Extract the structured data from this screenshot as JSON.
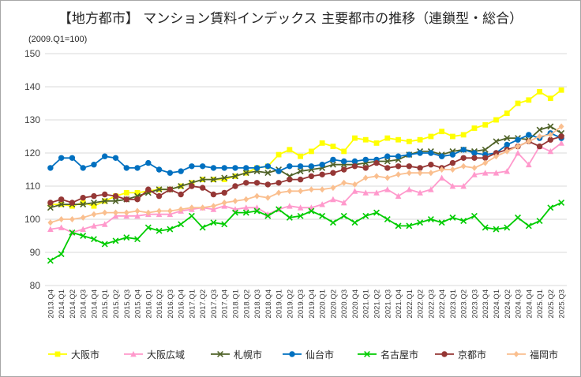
{
  "chart_data": {
    "type": "line",
    "title": "【地方都市】 マンション賃料インデックス  主要都市の推移（連鎖型・総合）",
    "unit_note": "(2009.Q1=100)",
    "ylim": [
      80,
      150
    ],
    "yticks": [
      80,
      90,
      100,
      110,
      120,
      130,
      140,
      150
    ],
    "grid": true,
    "legend_position": "bottom",
    "categories": [
      "2013.Q4",
      "2014.Q1",
      "2014.Q2",
      "2014.Q3",
      "2014.Q4",
      "2015.Q1",
      "2015.Q2",
      "2015.Q3",
      "2015.Q4",
      "2016.Q1",
      "2016.Q2",
      "2016.Q3",
      "2016.Q4",
      "2017.Q1",
      "2017.Q2",
      "2017.Q3",
      "2017.Q4",
      "2018.Q1",
      "2018.Q2",
      "2018.Q3",
      "2018.Q4",
      "2019.Q1",
      "2019.Q2",
      "2019.Q3",
      "2019.Q4",
      "2020.Q1",
      "2020.Q2",
      "2020.Q3",
      "2020.Q4",
      "2021.Q1",
      "2021.Q2",
      "2021.Q3",
      "2021.Q4",
      "2022.Q1",
      "2022.Q2",
      "2022.Q3",
      "2022.Q4",
      "2023.Q1",
      "2023.Q2",
      "2023.Q3",
      "2023.Q4",
      "2024.Q1",
      "2024.Q2",
      "2024.Q3",
      "2024.Q4",
      "2025.Q1",
      "2025.Q2",
      "2025.Q3"
    ],
    "series": [
      {
        "name": "大阪市",
        "color": "#ffff00",
        "marker": "square",
        "values": [
          104.5,
          104.5,
          104,
          105,
          104,
          105.5,
          107,
          108,
          108,
          108.5,
          109,
          109,
          110,
          111,
          112,
          112,
          112,
          113,
          114,
          115.5,
          116,
          119.5,
          121,
          119,
          120.5,
          123,
          122,
          120.5,
          124.5,
          124,
          123,
          124.5,
          124,
          123.5,
          124,
          125,
          126.5,
          125,
          125.5,
          127.5,
          128.5,
          130,
          132,
          135,
          136,
          138.5,
          136.5,
          139
        ]
      },
      {
        "name": "大阪広域",
        "color": "#ff99cc",
        "marker": "triangle",
        "values": [
          97,
          97.5,
          96,
          97,
          98,
          98.5,
          101,
          101,
          101,
          101.5,
          101.5,
          101.5,
          102.5,
          103,
          103.5,
          103,
          104,
          103,
          103.5,
          103.5,
          101.5,
          103,
          104,
          103.5,
          103.5,
          104.5,
          106,
          105,
          108.5,
          108,
          108,
          109,
          107,
          109,
          108,
          109,
          112.5,
          110,
          110,
          113.5,
          114,
          114,
          114.5,
          120,
          116.5,
          122,
          120.5,
          123
        ]
      },
      {
        "name": "札幌市",
        "color": "#4f6228",
        "marker": "x",
        "values": [
          103.5,
          104.5,
          104.5,
          104.5,
          105,
          105.5,
          105.5,
          106,
          107,
          108,
          109,
          109,
          110,
          111,
          112,
          112,
          112.5,
          113,
          114,
          114.5,
          114,
          115,
          113,
          114.5,
          115,
          115.5,
          116.5,
          116.5,
          116.5,
          117,
          117.5,
          117.5,
          118,
          119.5,
          120.5,
          120.5,
          119.5,
          120.5,
          121,
          120.5,
          121,
          123.5,
          124.5,
          124.5,
          124,
          127,
          128,
          126
        ]
      },
      {
        "name": "仙台市",
        "color": "#0070c0",
        "marker": "circle",
        "values": [
          115.5,
          118.5,
          118.5,
          115.5,
          116.5,
          119,
          118.5,
          115.5,
          115.5,
          117,
          115,
          114,
          114.5,
          116,
          116,
          115.5,
          115.5,
          115.5,
          115.5,
          115.5,
          116,
          114.5,
          116,
          116,
          116,
          116.5,
          118,
          117.5,
          117.5,
          118,
          118,
          119,
          119,
          119.5,
          120,
          120,
          119,
          119.5,
          121,
          120,
          119.5,
          120,
          122.5,
          124,
          125.5,
          124.5,
          126,
          124.5
        ]
      },
      {
        "name": "名古屋市",
        "color": "#00cc00",
        "marker": "x",
        "values": [
          87.5,
          89.5,
          96,
          95,
          94,
          92.5,
          93.5,
          94.5,
          94,
          97.5,
          96.5,
          97,
          98.5,
          101,
          97.5,
          99,
          98.5,
          102,
          102,
          102.5,
          101,
          103,
          100.5,
          101,
          102.5,
          101,
          99,
          101,
          99,
          101,
          102,
          100,
          98,
          98,
          99,
          100,
          99,
          100.5,
          99.5,
          101,
          97.5,
          97,
          97.5,
          100.5,
          98,
          99.5,
          103.5,
          105
        ]
      },
      {
        "name": "京都市",
        "color": "#953735",
        "marker": "circle",
        "values": [
          105,
          106,
          105,
          106.5,
          107,
          107.5,
          107,
          106,
          106,
          109,
          107,
          109,
          107.5,
          110,
          109.5,
          107.5,
          108,
          110,
          111,
          111,
          110.5,
          111,
          112,
          112,
          113,
          113.5,
          114,
          115,
          116,
          115.5,
          117,
          115.5,
          116,
          116,
          115.5,
          116.5,
          115.5,
          117,
          118.5,
          118.5,
          118.5,
          120,
          121,
          122,
          123.5,
          122,
          124,
          125
        ]
      },
      {
        "name": "福岡市",
        "color": "#fabf8f",
        "marker": "diamond",
        "values": [
          99,
          100,
          100,
          100.5,
          101.5,
          102,
          102,
          102,
          102.5,
          102,
          102.5,
          102.5,
          103,
          103.5,
          103.5,
          104,
          105,
          105.5,
          106,
          107,
          106.5,
          108,
          108.5,
          108.5,
          109,
          109,
          109.5,
          111,
          110.5,
          112.5,
          113,
          112.5,
          113.5,
          114,
          114,
          114,
          115,
          115,
          116,
          115.5,
          117,
          119,
          120.5,
          122,
          123.5,
          125,
          125.5,
          128
        ]
      }
    ]
  }
}
